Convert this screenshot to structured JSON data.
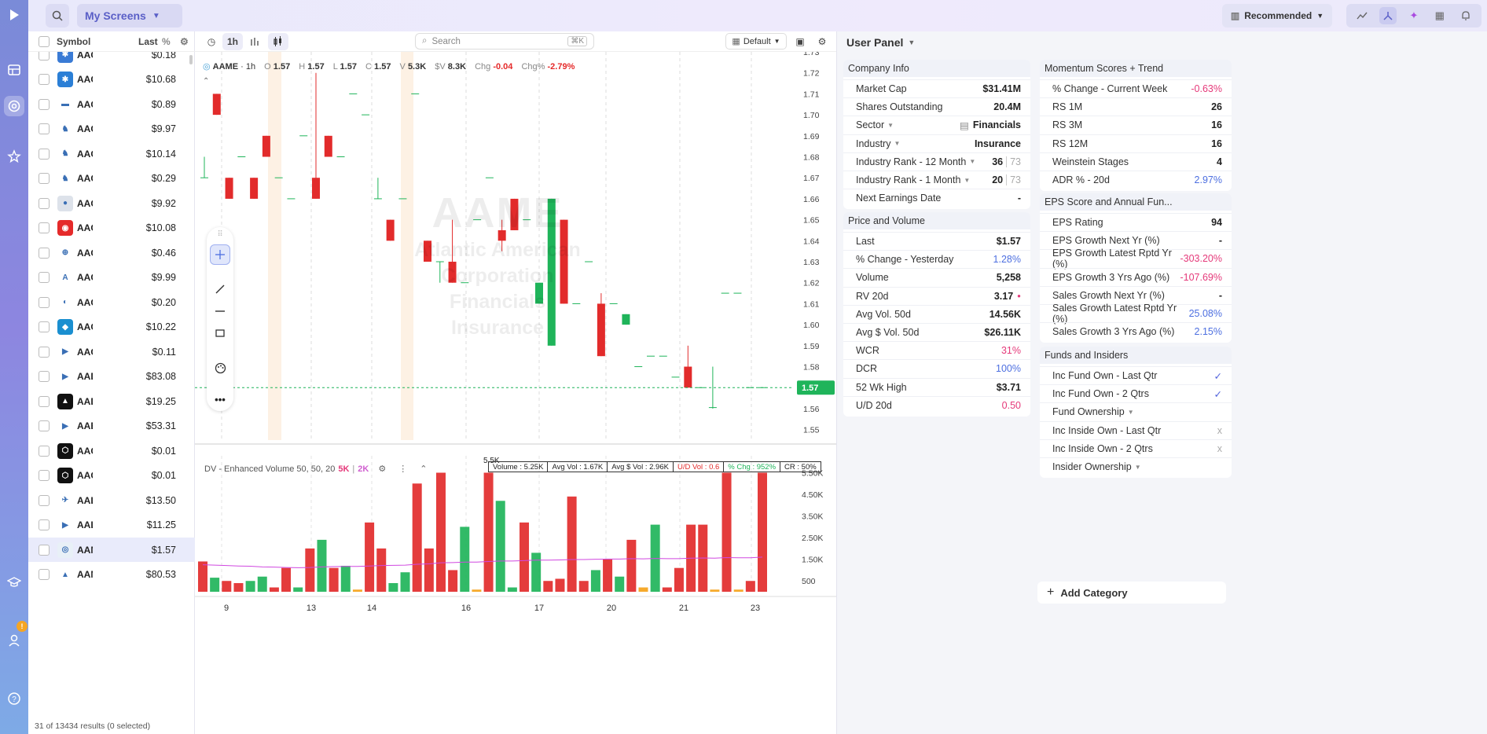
{
  "topbar": {
    "my_screens": "My Screens",
    "recommended": "Recommended"
  },
  "nav": {
    "badge": "!"
  },
  "list": {
    "header": {
      "symbol": "Symbol",
      "last": "Last",
      "pct": "%"
    },
    "rows": [
      {
        "sym": "AAC",
        "last": "$0.18",
        "logo_color": "#3a7bd5",
        "logo_text": "✱"
      },
      {
        "sym": "AAC",
        "last": "$10.68",
        "logo_color": "#2b7fd6",
        "logo_text": "✱"
      },
      {
        "sym": "AAC",
        "last": "$0.89",
        "logo_color": "#ffffff",
        "logo_text": "▬"
      },
      {
        "sym": "AAC",
        "last": "$9.97",
        "logo_color": "#ffffff",
        "logo_text": "♞"
      },
      {
        "sym": "AAC",
        "last": "$10.14",
        "logo_color": "#ffffff",
        "logo_text": "♞"
      },
      {
        "sym": "AAC",
        "last": "$0.29",
        "logo_color": "#ffffff",
        "logo_text": "♞"
      },
      {
        "sym": "AAC",
        "last": "$9.92",
        "logo_color": "#dde2ea",
        "logo_text": "●"
      },
      {
        "sym": "AAC",
        "last": "$10.08",
        "logo_color": "#e52a2a",
        "logo_text": "◉"
      },
      {
        "sym": "AAC",
        "last": "$0.46",
        "logo_color": "#ffffff",
        "logo_text": "⊕"
      },
      {
        "sym": "AAC",
        "last": "$9.99",
        "logo_color": "#ffffff",
        "logo_text": "A"
      },
      {
        "sym": "AAC",
        "last": "$0.20",
        "logo_color": "#ffffff",
        "logo_text": "◐"
      },
      {
        "sym": "AAC",
        "last": "$10.22",
        "logo_color": "#1a8fd0",
        "logo_text": "◆"
      },
      {
        "sym": "AAC",
        "last": "$0.11",
        "logo_color": "#ffffff",
        "logo_text": "▶"
      },
      {
        "sym": "AAD",
        "last": "$83.08",
        "logo_color": "#ffffff",
        "logo_text": "▶"
      },
      {
        "sym": "AAD",
        "last": "$19.25",
        "logo_color": "#111111",
        "logo_text": "▲"
      },
      {
        "sym": "AAB",
        "last": "$53.31",
        "logo_color": "#ffffff",
        "logo_text": "▶"
      },
      {
        "sym": "AAC",
        "last": "$0.01",
        "logo_color": "#111111",
        "logo_text": "⬡"
      },
      {
        "sym": "AAC",
        "last": "$0.01",
        "logo_color": "#111111",
        "logo_text": "⬡"
      },
      {
        "sym": "AAL",
        "last": "$13.50",
        "logo_color": "#ffffff",
        "logo_text": "✈"
      },
      {
        "sym": "AAL",
        "last": "$11.25",
        "logo_color": "#ffffff",
        "logo_text": "▶"
      },
      {
        "sym": "AAM",
        "last": "$1.57",
        "logo_color": "#e8f0f7",
        "logo_text": "◎"
      },
      {
        "sym": "AAM",
        "last": "$80.53",
        "logo_color": "#ffffff",
        "logo_text": "▲"
      }
    ],
    "footer": "31 of 13434 results (0 selected)"
  },
  "chart": {
    "interval": "1h",
    "search_placeholder": "Search",
    "search_kbd": "⌘K",
    "layout": "Default",
    "ohlc": {
      "symbol": "AAME",
      "interval": "1h",
      "o": "1.57",
      "h": "1.57",
      "l": "1.57",
      "c": "1.57",
      "v": "5.3K",
      "sv": "8.3K",
      "chg": "-0.04",
      "chgp": "-2.79%"
    },
    "watermark": {
      "symbol": "AAME",
      "name": "Atlantic American Corporation",
      "sector": "Financials",
      "industry": "Insurance"
    },
    "last_price_label": "1.57",
    "volume_indicator": {
      "name": "DV - Enhanced Volume 50, 50, 20",
      "v1": "5K",
      "v2": "2K",
      "peak_label": "5.5K"
    },
    "volume_stats": [
      "Volume : 5.25K",
      "Avg Vol : 1.67K",
      "Avg $ Vol : 2.96K",
      "U/D Vol : 0.6",
      "% Chg : 952%",
      "CR : 50%"
    ]
  },
  "chart_data": {
    "type": "candlestick",
    "title": "AAME · 1h",
    "x_labels": [
      "9",
      "13",
      "14",
      "16",
      "17",
      "20",
      "21",
      "23"
    ],
    "y_ticks": [
      1.55,
      1.56,
      1.57,
      1.58,
      1.59,
      1.6,
      1.61,
      1.62,
      1.63,
      1.64,
      1.65,
      1.66,
      1.67,
      1.68,
      1.69,
      1.7,
      1.71,
      1.72,
      1.73
    ],
    "ylim": [
      1.545,
      1.73
    ],
    "candles": [
      {
        "o": 1.67,
        "h": 1.68,
        "l": 1.67,
        "c": 1.67
      },
      {
        "o": 1.71,
        "h": 1.71,
        "l": 1.7,
        "c": 1.7
      },
      {
        "o": 1.67,
        "h": 1.67,
        "l": 1.66,
        "c": 1.66
      },
      {
        "o": 1.68,
        "h": 1.68,
        "l": 1.68,
        "c": 1.68
      },
      {
        "o": 1.67,
        "h": 1.67,
        "l": 1.66,
        "c": 1.66
      },
      {
        "o": 1.69,
        "h": 1.69,
        "l": 1.68,
        "c": 1.68
      },
      {
        "o": 1.67,
        "h": 1.67,
        "l": 1.67,
        "c": 1.67
      },
      {
        "o": 1.66,
        "h": 1.66,
        "l": 1.66,
        "c": 1.66
      },
      {
        "o": 1.69,
        "h": 1.69,
        "l": 1.69,
        "c": 1.69
      },
      {
        "o": 1.67,
        "h": 1.72,
        "l": 1.66,
        "c": 1.66
      },
      {
        "o": 1.69,
        "h": 1.69,
        "l": 1.68,
        "c": 1.68
      },
      {
        "o": 1.68,
        "h": 1.68,
        "l": 1.68,
        "c": 1.68
      },
      {
        "o": 1.71,
        "h": 1.71,
        "l": 1.71,
        "c": 1.71
      },
      {
        "o": 1.7,
        "h": 1.7,
        "l": 1.7,
        "c": 1.7
      },
      {
        "o": 1.66,
        "h": 1.67,
        "l": 1.66,
        "c": 1.66
      },
      {
        "o": 1.65,
        "h": 1.65,
        "l": 1.64,
        "c": 1.64
      },
      {
        "o": 1.66,
        "h": 1.66,
        "l": 1.66,
        "c": 1.66
      },
      {
        "o": 1.71,
        "h": 1.71,
        "l": 1.71,
        "c": 1.71
      },
      {
        "o": 1.64,
        "h": 1.64,
        "l": 1.63,
        "c": 1.63
      },
      {
        "o": 1.63,
        "h": 1.63,
        "l": 1.62,
        "c": 1.63
      },
      {
        "o": 1.63,
        "h": 1.65,
        "l": 1.62,
        "c": 1.62
      },
      {
        "o": 1.62,
        "h": 1.62,
        "l": 1.62,
        "c": 1.62
      },
      {
        "o": 1.65,
        "h": 1.65,
        "l": 1.65,
        "c": 1.65
      },
      {
        "o": 1.67,
        "h": 1.67,
        "l": 1.67,
        "c": 1.67
      },
      {
        "o": 1.645,
        "h": 1.65,
        "l": 1.635,
        "c": 1.64
      },
      {
        "o": 1.66,
        "h": 1.66,
        "l": 1.645,
        "c": 1.645
      },
      {
        "o": 1.65,
        "h": 1.65,
        "l": 1.65,
        "c": 1.65
      },
      {
        "o": 1.61,
        "h": 1.62,
        "l": 1.61,
        "c": 1.62
      },
      {
        "o": 1.59,
        "h": 1.66,
        "l": 1.59,
        "c": 1.66
      },
      {
        "o": 1.65,
        "h": 1.65,
        "l": 1.61,
        "c": 1.61
      },
      {
        "o": 1.61,
        "h": 1.61,
        "l": 1.61,
        "c": 1.61
      },
      {
        "o": 1.63,
        "h": 1.63,
        "l": 1.63,
        "c": 1.63
      },
      {
        "o": 1.61,
        "h": 1.615,
        "l": 1.585,
        "c": 1.585
      },
      {
        "o": 1.61,
        "h": 1.61,
        "l": 1.61,
        "c": 1.61
      },
      {
        "o": 1.6,
        "h": 1.605,
        "l": 1.6,
        "c": 1.605
      },
      {
        "o": 1.58,
        "h": 1.58,
        "l": 1.58,
        "c": 1.58
      },
      {
        "o": 1.585,
        "h": 1.585,
        "l": 1.585,
        "c": 1.585
      },
      {
        "o": 1.585,
        "h": 1.585,
        "l": 1.585,
        "c": 1.585
      },
      {
        "o": 1.575,
        "h": 1.575,
        "l": 1.575,
        "c": 1.575
      },
      {
        "o": 1.58,
        "h": 1.59,
        "l": 1.57,
        "c": 1.57
      },
      {
        "o": 1.57,
        "h": 1.57,
        "l": 1.57,
        "c": 1.57
      },
      {
        "o": 1.56,
        "h": 1.58,
        "l": 1.56,
        "c": 1.5605
      },
      {
        "o": 1.615,
        "h": 1.615,
        "l": 1.615,
        "c": 1.615
      },
      {
        "o": 1.615,
        "h": 1.615,
        "l": 1.615,
        "c": 1.615
      },
      {
        "o": 1.57,
        "h": 1.57,
        "l": 1.57,
        "c": 1.57
      },
      {
        "o": 1.57,
        "h": 1.57,
        "l": 1.57,
        "c": 1.57
      }
    ],
    "volume": {
      "y_ticks_labels": [
        "5.50K",
        "4.50K",
        "3.50K",
        "2.50K",
        "1.50K",
        "500"
      ],
      "y_ticks_values": [
        5500,
        4500,
        3500,
        2500,
        1500,
        500
      ],
      "ylim": [
        0,
        5700
      ],
      "bars": [
        {
          "v": 1400,
          "d": "down"
        },
        {
          "v": 650,
          "d": "up"
        },
        {
          "v": 500,
          "d": "down"
        },
        {
          "v": 400,
          "d": "down"
        },
        {
          "v": 500,
          "d": "up"
        },
        {
          "v": 700,
          "d": "up"
        },
        {
          "v": 200,
          "d": "down"
        },
        {
          "v": 1100,
          "d": "down"
        },
        {
          "v": 200,
          "d": "up"
        },
        {
          "v": 2000,
          "d": "down"
        },
        {
          "v": 2400,
          "d": "up"
        },
        {
          "v": 1100,
          "d": "down"
        },
        {
          "v": 1200,
          "d": "up"
        },
        {
          "v": 100,
          "d": "neutral"
        },
        {
          "v": 3200,
          "d": "down"
        },
        {
          "v": 2000,
          "d": "down"
        },
        {
          "v": 400,
          "d": "up"
        },
        {
          "v": 900,
          "d": "up"
        },
        {
          "v": 5000,
          "d": "down"
        },
        {
          "v": 2000,
          "d": "down"
        },
        {
          "v": 5500,
          "d": "down"
        },
        {
          "v": 1000,
          "d": "down"
        },
        {
          "v": 3000,
          "d": "up"
        },
        {
          "v": 100,
          "d": "neutral"
        },
        {
          "v": 5500,
          "d": "down"
        },
        {
          "v": 4200,
          "d": "up"
        },
        {
          "v": 200,
          "d": "up"
        },
        {
          "v": 3200,
          "d": "down"
        },
        {
          "v": 1800,
          "d": "up"
        },
        {
          "v": 500,
          "d": "down"
        },
        {
          "v": 600,
          "d": "down"
        },
        {
          "v": 4400,
          "d": "down"
        },
        {
          "v": 500,
          "d": "down"
        },
        {
          "v": 1000,
          "d": "up"
        },
        {
          "v": 1500,
          "d": "down"
        },
        {
          "v": 700,
          "d": "up"
        },
        {
          "v": 2400,
          "d": "down"
        },
        {
          "v": 200,
          "d": "neutral"
        },
        {
          "v": 3100,
          "d": "up"
        },
        {
          "v": 200,
          "d": "down"
        },
        {
          "v": 1100,
          "d": "down"
        },
        {
          "v": 3100,
          "d": "down"
        },
        {
          "v": 3100,
          "d": "down"
        },
        {
          "v": 100,
          "d": "neutral"
        },
        {
          "v": 5500,
          "d": "down"
        },
        {
          "v": 100,
          "d": "neutral"
        },
        {
          "v": 500,
          "d": "down"
        },
        {
          "v": 5500,
          "d": "down"
        }
      ],
      "ma": [
        1250,
        1230,
        1210,
        1190,
        1180,
        1150,
        1140,
        1120,
        1110,
        1120,
        1150,
        1160,
        1170,
        1170,
        1190,
        1210,
        1220,
        1230,
        1270,
        1290,
        1340,
        1350,
        1370,
        1370,
        1400,
        1420,
        1420,
        1440,
        1460,
        1460,
        1470,
        1490,
        1490,
        1500,
        1510,
        1510,
        1530,
        1520,
        1540,
        1530,
        1530,
        1550,
        1560,
        1550,
        1580,
        1570,
        1570,
        1600
      ]
    },
    "colors": {
      "up": "#1fb45a",
      "down": "#e22b2b",
      "neutral": "#f5a31a",
      "ma": "#d048e0"
    }
  },
  "panel": {
    "title": "User Panel",
    "company": {
      "title": "Company Info",
      "rows": [
        {
          "k": "Market Cap",
          "v": "$31.41M"
        },
        {
          "k": "Shares Outstanding",
          "v": "20.4M"
        },
        {
          "k": "Sector",
          "v": "Financials"
        },
        {
          "k": "Industry",
          "v": "Insurance"
        },
        {
          "k": "Industry Rank - 12 Month",
          "v": "36",
          "t": "73"
        },
        {
          "k": "Industry Rank - 1 Month",
          "v": "20",
          "t": "73"
        },
        {
          "k": "Next Earnings Date",
          "v": "-"
        }
      ]
    },
    "price": {
      "title": "Price and Volume",
      "rows": [
        {
          "k": "Last",
          "v": "$1.57"
        },
        {
          "k": "% Change - Yesterday",
          "v": "1.28%"
        },
        {
          "k": "Volume",
          "v": "5,258"
        },
        {
          "k": "RV 20d",
          "v": "3.17"
        },
        {
          "k": "Avg Vol. 50d",
          "v": "14.56K"
        },
        {
          "k": "Avg $ Vol. 50d",
          "v": "$26.11K"
        },
        {
          "k": "WCR",
          "v": "31%"
        },
        {
          "k": "DCR",
          "v": "100%"
        },
        {
          "k": "52 Wk High",
          "v": "$3.71"
        },
        {
          "k": "U/D 20d",
          "v": "0.50"
        }
      ]
    },
    "momentum": {
      "title": "Momentum Scores + Trend",
      "rows": [
        {
          "k": "% Change - Current Week",
          "v": "-0.63%"
        },
        {
          "k": "RS 1M",
          "v": "26"
        },
        {
          "k": "RS 3M",
          "v": "16"
        },
        {
          "k": "RS 12M",
          "v": "16"
        },
        {
          "k": "Weinstein Stages",
          "v": "4"
        },
        {
          "k": "ADR % - 20d",
          "v": "2.97%"
        }
      ]
    },
    "eps": {
      "title": "EPS Score and Annual Fun...",
      "rows": [
        {
          "k": "EPS Rating",
          "v": "94"
        },
        {
          "k": "EPS Growth Next Yr (%)",
          "v": "-"
        },
        {
          "k": "EPS Growth Latest Rptd Yr (%)",
          "v": "-303.20%"
        },
        {
          "k": "EPS Growth 3 Yrs Ago (%)",
          "v": "-107.69%"
        },
        {
          "k": "Sales Growth Next Yr (%)",
          "v": "-"
        },
        {
          "k": "Sales Growth Latest Rptd Yr (%)",
          "v": "25.08%"
        },
        {
          "k": "Sales Growth 3 Yrs Ago (%)",
          "v": "2.15%"
        }
      ]
    },
    "funds": {
      "title": "Funds and Insiders",
      "rows": [
        {
          "k": "Inc Fund Own - Last Qtr",
          "v": "✓"
        },
        {
          "k": "Inc Fund Own - 2 Qtrs",
          "v": "✓"
        },
        {
          "k": "Fund Ownership",
          "v": ""
        },
        {
          "k": "Inc Inside Own - Last Qtr",
          "v": "x"
        },
        {
          "k": "Inc Inside Own - 2 Qtrs",
          "v": "x"
        },
        {
          "k": "Insider Ownership",
          "v": ""
        }
      ]
    },
    "add_category": "Add Category"
  }
}
